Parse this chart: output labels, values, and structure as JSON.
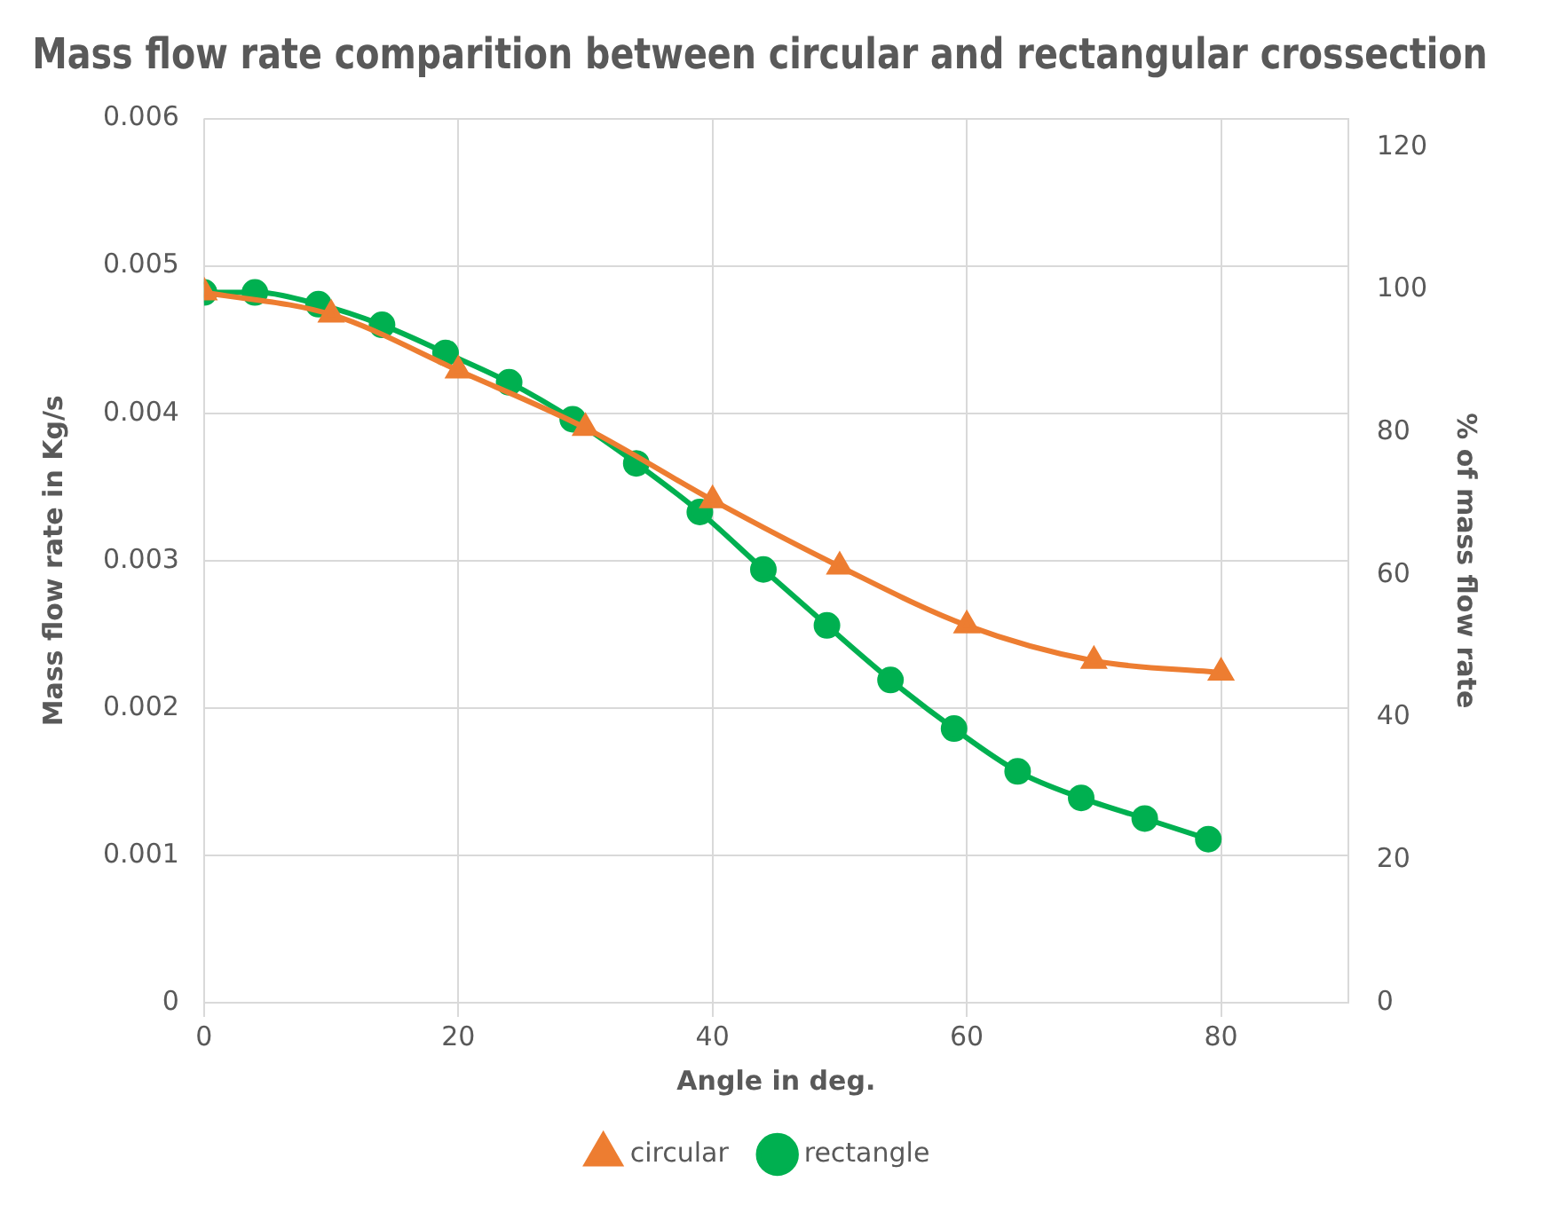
{
  "chart_data": {
    "type": "line",
    "title": "Mass flow rate comparition between circular and rectangular crossection",
    "xlabel": "Angle in deg.",
    "ylabel": "Mass flow rate in Kg/s",
    "y2label": "% of mass flow rate",
    "xlim": [
      0,
      90
    ],
    "xticks": [
      0,
      20,
      40,
      60,
      80
    ],
    "ylim": [
      0,
      0.006
    ],
    "yticks": [
      0,
      0.001,
      0.002,
      0.003,
      0.004,
      0.005,
      0.006
    ],
    "y2lim": [
      0,
      124
    ],
    "y2ticks": [
      0,
      20,
      40,
      60,
      80,
      100,
      120
    ],
    "grid": true,
    "legend": "bottom",
    "line_style": "solid",
    "series": [
      {
        "name": "circular",
        "color": "#ed7d31",
        "marker": "triangle",
        "x": [
          0,
          10,
          20,
          30,
          40,
          50,
          60,
          70,
          80
        ],
        "values": [
          0.00482,
          0.00467,
          0.00429,
          0.0039,
          0.00341,
          0.00296,
          0.00256,
          0.00232,
          0.00224
        ]
      },
      {
        "name": "rectangle",
        "color": "#00b050",
        "marker": "circle",
        "x": [
          0,
          4,
          9,
          14,
          19,
          24,
          29,
          34,
          39,
          44,
          49,
          54,
          59,
          64,
          69,
          74,
          79
        ],
        "values": [
          0.00482,
          0.00482,
          0.00474,
          0.0046,
          0.00441,
          0.00421,
          0.00396,
          0.00366,
          0.00333,
          0.00294,
          0.00256,
          0.00219,
          0.00186,
          0.00157,
          0.00139,
          0.00125,
          0.00111
        ]
      }
    ]
  }
}
